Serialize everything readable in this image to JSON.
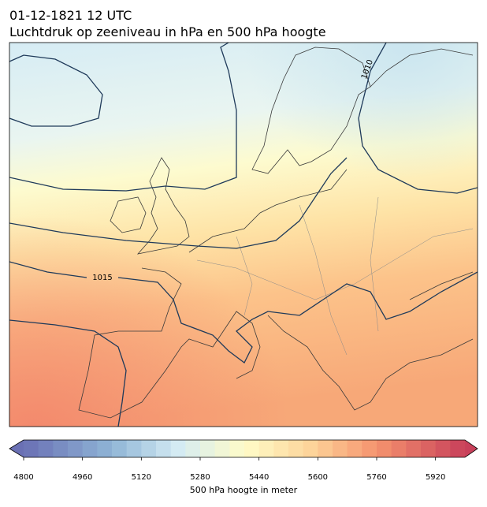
{
  "title": "01-12-1821 12 UTC",
  "subtitle": "Luchtdruk op zeeniveau in hPa en 500 hPa hoogte",
  "contour_labels": [
    "1010",
    "1015"
  ],
  "colorbar": {
    "label": "500 hPa hoogte in meter",
    "range": [
      4800,
      6000
    ],
    "step": 40,
    "ticks": [
      4800,
      4960,
      5120,
      5280,
      5440,
      5600,
      5760,
      5920
    ],
    "cmap": "RdYlBu_r",
    "extend": "both"
  }
}
